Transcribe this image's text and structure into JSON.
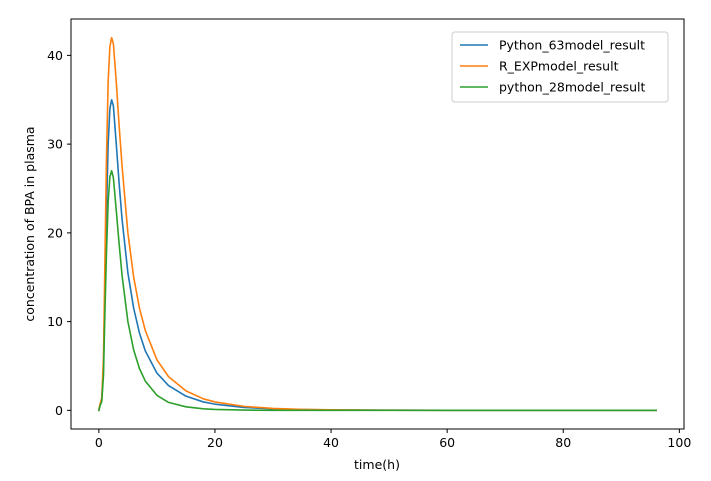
{
  "chart_data": {
    "type": "line",
    "title": "",
    "xlabel": "time(h)",
    "ylabel": "concentration of BPA in plasma",
    "xlim": [
      -4.8,
      100.8
    ],
    "ylim": [
      -2.1,
      44.1
    ],
    "xticks": [
      0,
      20,
      40,
      60,
      80,
      100
    ],
    "yticks": [
      0,
      10,
      20,
      30,
      40
    ],
    "grid": false,
    "legend_position": "top-right",
    "series": [
      {
        "name": "Python_63model_result",
        "color": "#1f77b4",
        "x": [
          0,
          0.2,
          0.5,
          0.8,
          1.0,
          1.3,
          1.6,
          1.9,
          2.2,
          2.5,
          3,
          3.5,
          4,
          5,
          6,
          7,
          8,
          10,
          12,
          15,
          18,
          20,
          25,
          30,
          35,
          40,
          50,
          60,
          70,
          80,
          90,
          96
        ],
        "y": [
          0,
          0.6,
          1.2,
          5,
          12,
          22,
          30,
          34,
          35,
          34.3,
          30,
          25.5,
          21.5,
          15.5,
          11.5,
          8.7,
          6.7,
          4.2,
          2.8,
          1.6,
          0.95,
          0.7,
          0.33,
          0.17,
          0.09,
          0.05,
          0.02,
          0.01,
          0,
          0,
          0,
          0
        ]
      },
      {
        "name": "R_EXPmodel_result",
        "color": "#ff7f0e",
        "x": [
          0,
          0.2,
          0.5,
          0.8,
          1.0,
          1.3,
          1.6,
          1.9,
          2.2,
          2.5,
          3,
          3.5,
          4,
          5,
          6,
          7,
          8,
          10,
          12,
          15,
          18,
          20,
          25,
          30,
          35,
          40,
          50,
          60,
          70,
          80,
          90,
          96
        ],
        "y": [
          0,
          0.7,
          1.4,
          6,
          15,
          28,
          37,
          41,
          42,
          41.3,
          37,
          32,
          27.5,
          20,
          15,
          11.5,
          9,
          5.7,
          3.8,
          2.2,
          1.3,
          0.95,
          0.45,
          0.22,
          0.11,
          0.06,
          0.02,
          0.01,
          0,
          0,
          0,
          0
        ]
      },
      {
        "name": "python_28model_result",
        "color": "#2ca02c",
        "x": [
          0,
          0.2,
          0.5,
          0.8,
          1.0,
          1.3,
          1.6,
          1.9,
          2.2,
          2.5,
          3,
          3.5,
          4,
          5,
          6,
          7,
          8,
          10,
          12,
          15,
          18,
          20,
          25,
          30,
          35,
          40,
          50,
          60,
          70,
          80,
          90,
          96
        ],
        "y": [
          0,
          0.5,
          1.0,
          4,
          10,
          17.5,
          23.5,
          26.3,
          27,
          26.2,
          22.5,
          18.7,
          15.2,
          10,
          6.8,
          4.7,
          3.3,
          1.7,
          0.9,
          0.4,
          0.18,
          0.1,
          0.03,
          0.01,
          0,
          0,
          0,
          0,
          0,
          0,
          0,
          0
        ]
      }
    ]
  }
}
